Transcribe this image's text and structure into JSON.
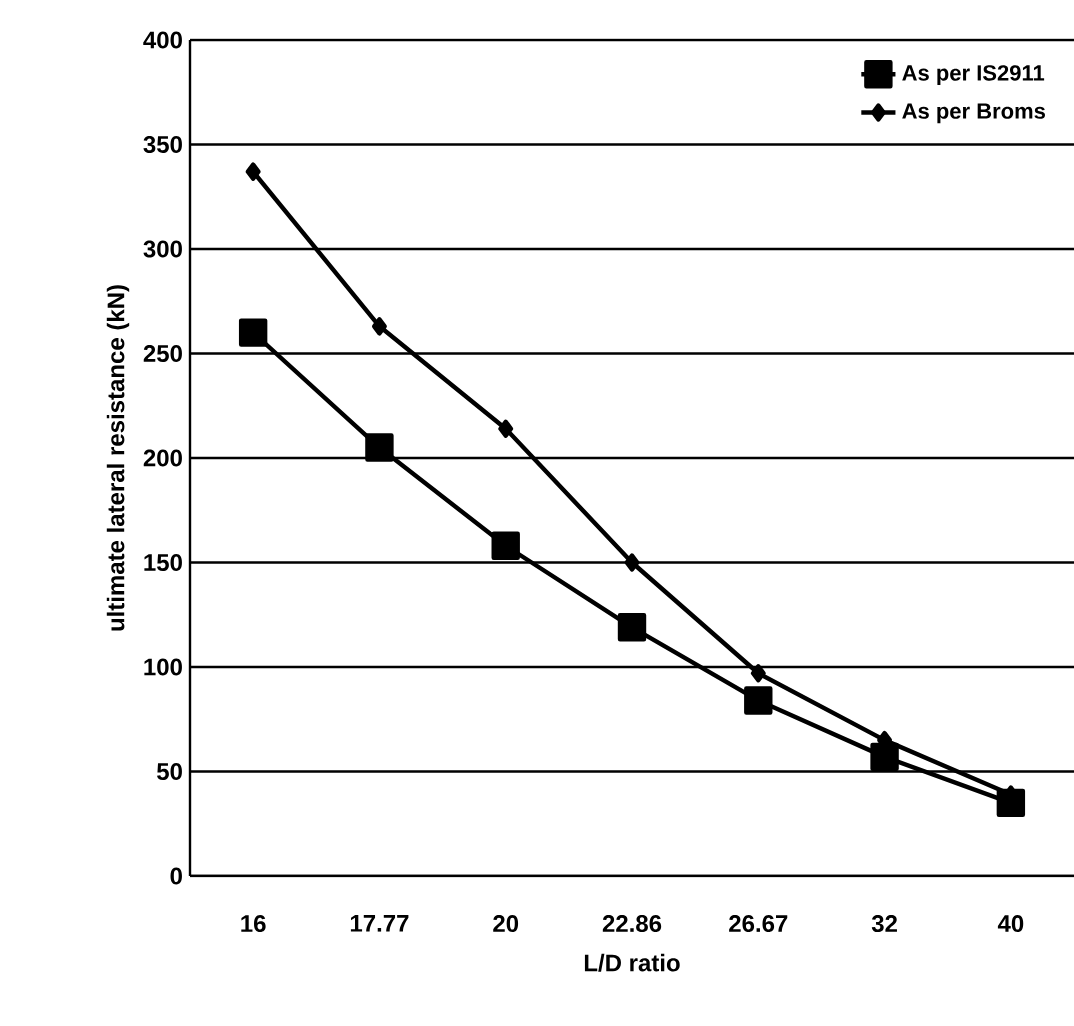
{
  "chart_data": {
    "type": "line",
    "xlabel": "L/D ratio",
    "ylabel": "ultimate lateral resistance (kN)",
    "categories": [
      "16",
      "17.77",
      "20",
      "22.86",
      "26.67",
      "32",
      "40"
    ],
    "series": [
      {
        "name": "As per IS2911",
        "color": "#000000",
        "marker": "square",
        "values": [
          260,
          205,
          158,
          119,
          84,
          57,
          35
        ]
      },
      {
        "name": "As per Broms",
        "color": "#000000",
        "marker": "diamond",
        "values": [
          337,
          263,
          214,
          150,
          97,
          65,
          39
        ]
      }
    ],
    "ylim": [
      0,
      400
    ],
    "yticks": [
      0,
      50,
      100,
      150,
      200,
      250,
      300,
      350,
      400
    ],
    "grid": "y",
    "legend": "top right",
    "line_style": "solid"
  }
}
